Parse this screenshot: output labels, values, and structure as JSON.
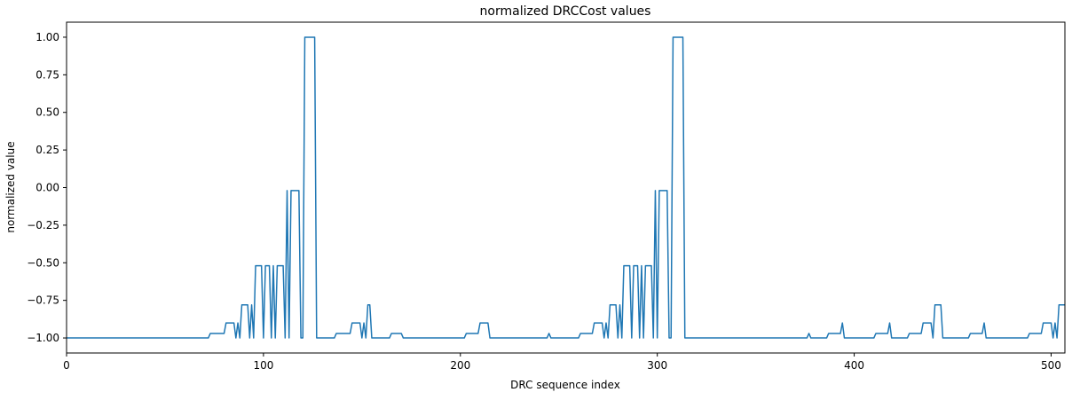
{
  "chart_data": {
    "type": "line",
    "title": "normalized DRCCost values",
    "xlabel": "DRC sequence index",
    "ylabel": "normalized value",
    "xlim": [
      0,
      507
    ],
    "ylim": [
      -1.1,
      1.1
    ],
    "x_ticks": [
      0,
      100,
      200,
      300,
      400,
      500
    ],
    "x_tick_labels": [
      "0",
      "100",
      "200",
      "300",
      "400",
      "500"
    ],
    "y_ticks": [
      1.0,
      0.75,
      0.5,
      0.25,
      0.0,
      -0.25,
      -0.5,
      -0.75,
      -1.0
    ],
    "y_tick_labels": [
      "1.00",
      "0.75",
      "0.50",
      "0.25",
      "0.00",
      "−0.25",
      "−0.50",
      "−0.75",
      "−1.00"
    ],
    "grid": false,
    "series": [
      {
        "color": "#1f77b4",
        "points": [
          [
            0,
            -1.0
          ],
          [
            72,
            -1.0
          ],
          [
            73,
            -0.97
          ],
          [
            80,
            -0.97
          ],
          [
            81,
            -0.9
          ],
          [
            85,
            -0.9
          ],
          [
            86,
            -1.0
          ],
          [
            87,
            -0.9
          ],
          [
            88,
            -1.0
          ],
          [
            89,
            -0.78
          ],
          [
            92,
            -0.78
          ],
          [
            93,
            -1.0
          ],
          [
            94,
            -0.78
          ],
          [
            95,
            -1.0
          ],
          [
            96,
            -0.52
          ],
          [
            99,
            -0.52
          ],
          [
            100,
            -1.0
          ],
          [
            101,
            -0.52
          ],
          [
            103,
            -0.52
          ],
          [
            104,
            -1.0
          ],
          [
            105,
            -0.52
          ],
          [
            106,
            -1.0
          ],
          [
            107,
            -0.52
          ],
          [
            110,
            -0.52
          ],
          [
            111,
            -1.0
          ],
          [
            112,
            -0.02
          ],
          [
            113,
            -1.0
          ],
          [
            114,
            -0.02
          ],
          [
            118,
            -0.02
          ],
          [
            119,
            -1.0
          ],
          [
            120,
            -1.0
          ],
          [
            121,
            1.0
          ],
          [
            126,
            1.0
          ],
          [
            127,
            -1.0
          ],
          [
            136,
            -1.0
          ],
          [
            137,
            -0.97
          ],
          [
            144,
            -0.97
          ],
          [
            145,
            -0.9
          ],
          [
            149,
            -0.9
          ],
          [
            150,
            -1.0
          ],
          [
            151,
            -0.9
          ],
          [
            152,
            -1.0
          ],
          [
            153,
            -0.78
          ],
          [
            154,
            -0.78
          ],
          [
            155,
            -1.0
          ],
          [
            164,
            -1.0
          ],
          [
            165,
            -0.97
          ],
          [
            170,
            -0.97
          ],
          [
            171,
            -1.0
          ],
          [
            202,
            -1.0
          ],
          [
            203,
            -0.97
          ],
          [
            209,
            -0.97
          ],
          [
            210,
            -0.9
          ],
          [
            214,
            -0.9
          ],
          [
            215,
            -1.0
          ],
          [
            244,
            -1.0
          ],
          [
            245,
            -0.97
          ],
          [
            246,
            -1.0
          ],
          [
            260,
            -1.0
          ],
          [
            261,
            -0.97
          ],
          [
            267,
            -0.97
          ],
          [
            268,
            -0.9
          ],
          [
            272,
            -0.9
          ],
          [
            273,
            -1.0
          ],
          [
            274,
            -0.9
          ],
          [
            275,
            -1.0
          ],
          [
            276,
            -0.78
          ],
          [
            279,
            -0.78
          ],
          [
            280,
            -1.0
          ],
          [
            281,
            -0.78
          ],
          [
            282,
            -1.0
          ],
          [
            283,
            -0.52
          ],
          [
            286,
            -0.52
          ],
          [
            287,
            -1.0
          ],
          [
            288,
            -0.52
          ],
          [
            290,
            -0.52
          ],
          [
            291,
            -1.0
          ],
          [
            292,
            -0.52
          ],
          [
            293,
            -1.0
          ],
          [
            294,
            -0.52
          ],
          [
            297,
            -0.52
          ],
          [
            298,
            -1.0
          ],
          [
            299,
            -0.02
          ],
          [
            300,
            -1.0
          ],
          [
            301,
            -0.02
          ],
          [
            305,
            -0.02
          ],
          [
            306,
            -1.0
          ],
          [
            307,
            -1.0
          ],
          [
            308,
            1.0
          ],
          [
            313,
            1.0
          ],
          [
            314,
            -1.0
          ],
          [
            376,
            -1.0
          ],
          [
            377,
            -0.97
          ],
          [
            378,
            -1.0
          ],
          [
            386,
            -1.0
          ],
          [
            387,
            -0.97
          ],
          [
            393,
            -0.97
          ],
          [
            394,
            -0.9
          ],
          [
            395,
            -1.0
          ],
          [
            410,
            -1.0
          ],
          [
            411,
            -0.97
          ],
          [
            417,
            -0.97
          ],
          [
            418,
            -0.9
          ],
          [
            419,
            -1.0
          ],
          [
            427,
            -1.0
          ],
          [
            428,
            -0.97
          ],
          [
            434,
            -0.97
          ],
          [
            435,
            -0.9
          ],
          [
            439,
            -0.9
          ],
          [
            440,
            -1.0
          ],
          [
            441,
            -0.78
          ],
          [
            444,
            -0.78
          ],
          [
            445,
            -1.0
          ],
          [
            458,
            -1.0
          ],
          [
            459,
            -0.97
          ],
          [
            465,
            -0.97
          ],
          [
            466,
            -0.9
          ],
          [
            467,
            -1.0
          ],
          [
            488,
            -1.0
          ],
          [
            489,
            -0.97
          ],
          [
            495,
            -0.97
          ],
          [
            496,
            -0.9
          ],
          [
            500,
            -0.9
          ],
          [
            501,
            -1.0
          ],
          [
            502,
            -0.9
          ],
          [
            503,
            -1.0
          ],
          [
            504,
            -0.78
          ],
          [
            507,
            -0.78
          ]
        ]
      }
    ]
  }
}
